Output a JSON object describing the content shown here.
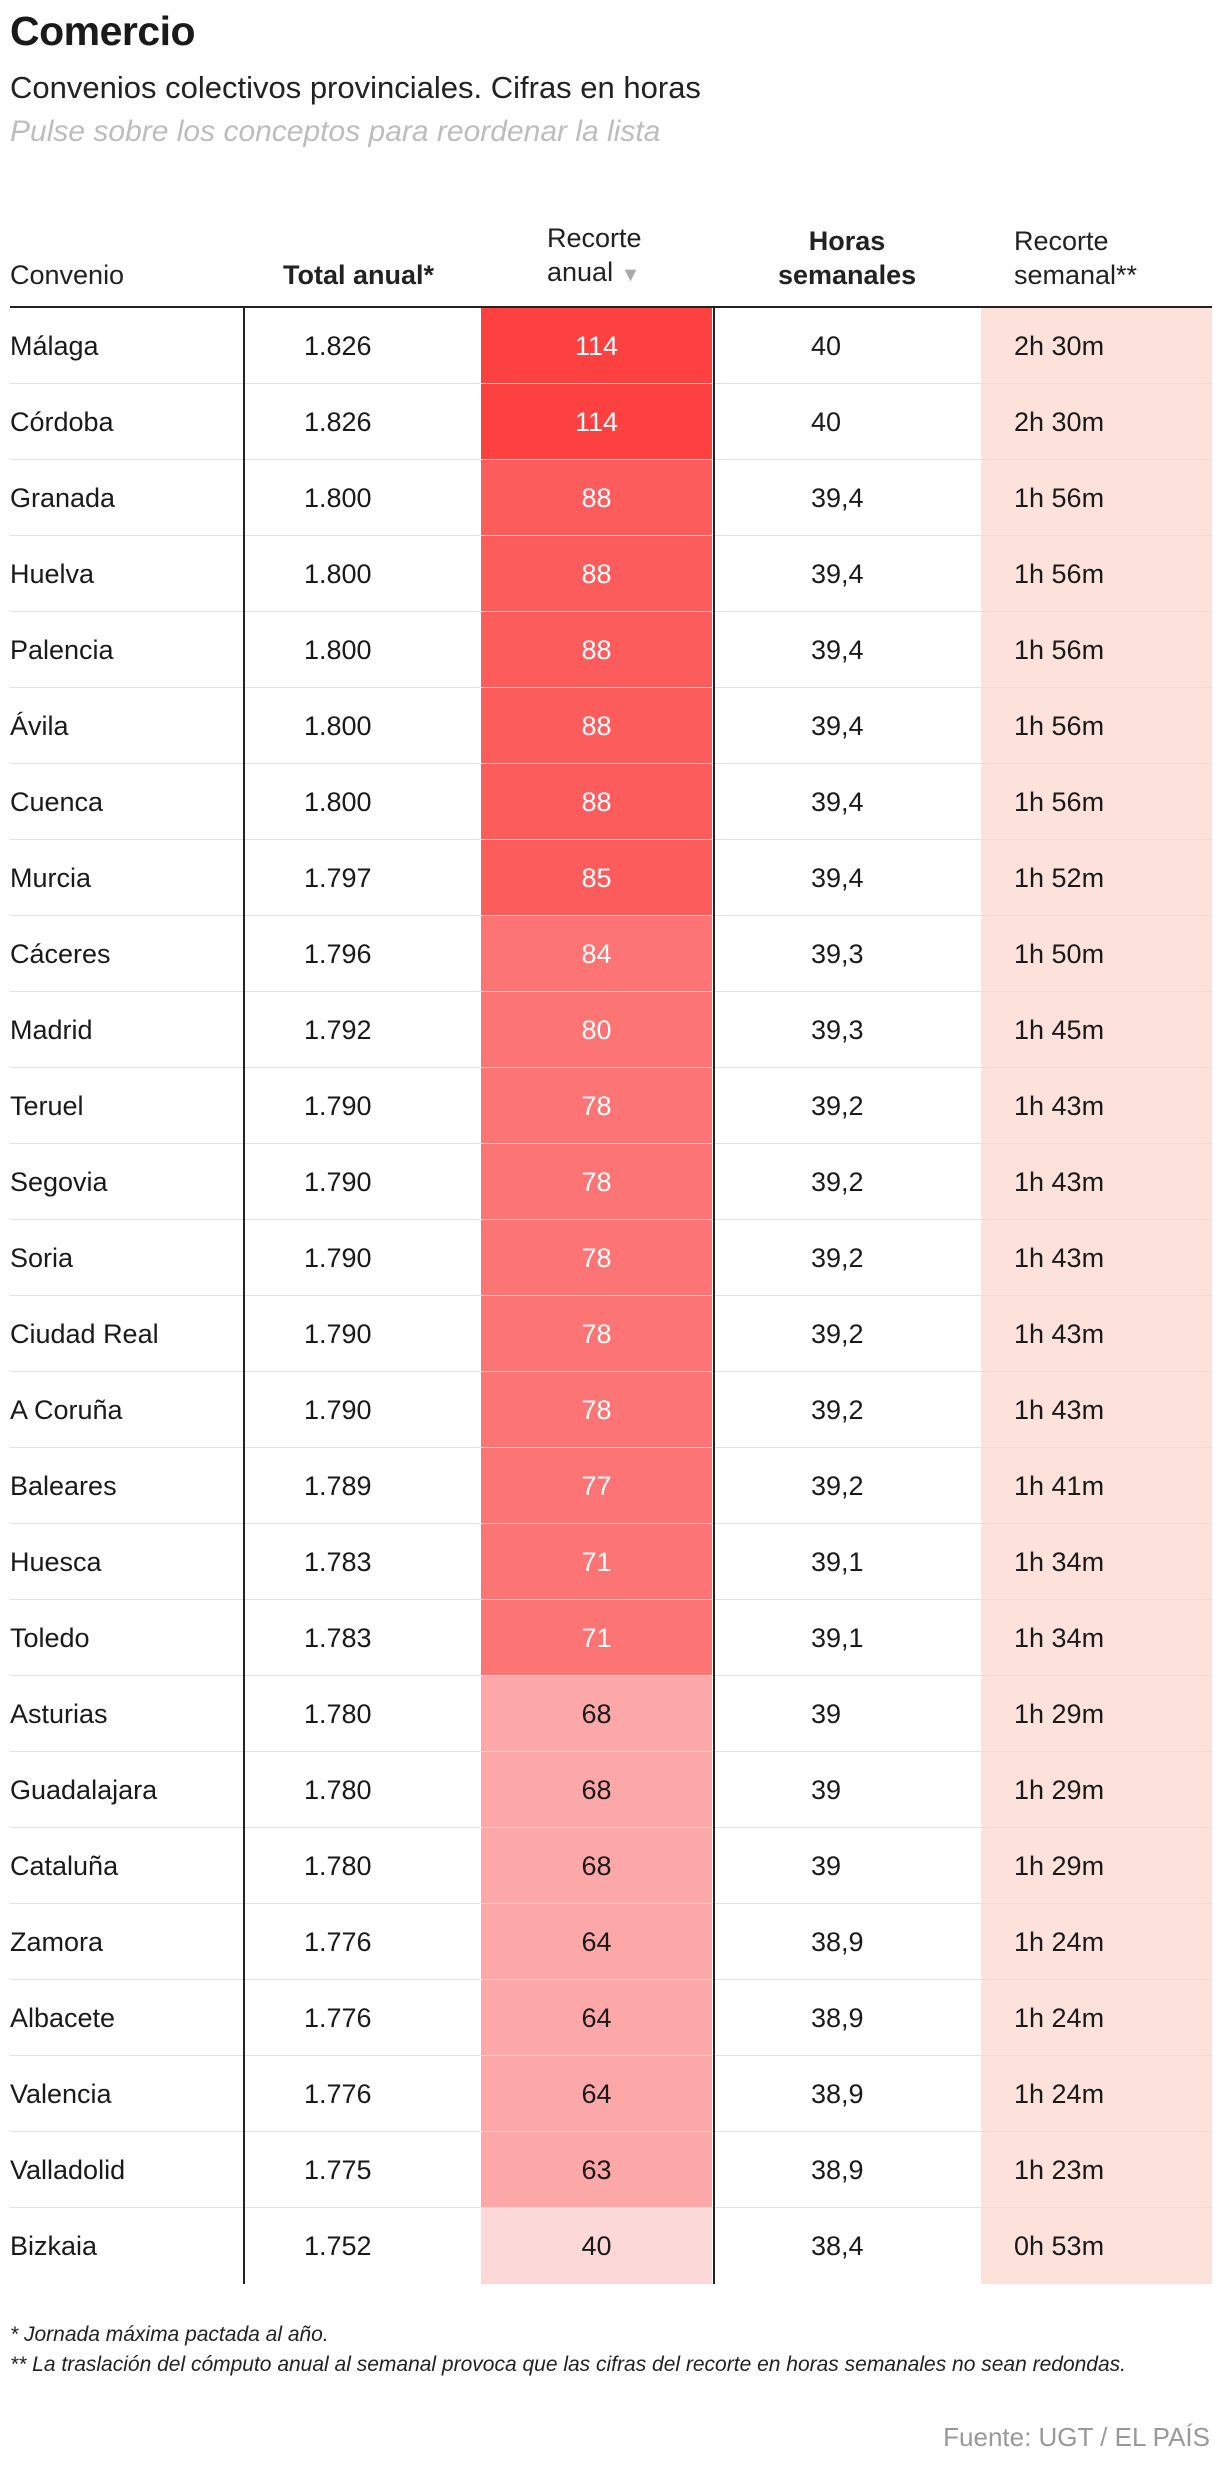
{
  "header": {
    "title": "Comercio",
    "subtitle": "Convenios colectivos provinciales. Cifras en horas",
    "instruction": "Pulse sobre los conceptos para reordenar la lista"
  },
  "columns": {
    "convenio": "Convenio",
    "total": "Total anual*",
    "recorte_line1": "Recorte",
    "recorte_line2": "anual",
    "sort_icon": "▼",
    "horas_line1": "Horas",
    "horas_line2": "semanales",
    "semanal_line1": "Recorte",
    "semanal_line2": "semanal**"
  },
  "colors": {
    "recorte_scale": [
      "#fdd8d8",
      "#fca8a8",
      "#fd7474",
      "#fd5c5c",
      "#fd4040"
    ],
    "semanal_bg": "#fde2dc"
  },
  "chart_data": {
    "type": "table",
    "columns": [
      "Convenio",
      "Total anual*",
      "Recorte anual",
      "Horas semanales",
      "Recorte semanal**"
    ],
    "sorted_by": "Recorte anual",
    "rows": [
      {
        "convenio": "Málaga",
        "total": "1.826",
        "recorte": 114,
        "horas": "40",
        "semanal": "2h 30m"
      },
      {
        "convenio": "Córdoba",
        "total": "1.826",
        "recorte": 114,
        "horas": "40",
        "semanal": "2h 30m"
      },
      {
        "convenio": "Granada",
        "total": "1.800",
        "recorte": 88,
        "horas": "39,4",
        "semanal": "1h 56m"
      },
      {
        "convenio": "Huelva",
        "total": "1.800",
        "recorte": 88,
        "horas": "39,4",
        "semanal": "1h 56m"
      },
      {
        "convenio": "Palencia",
        "total": "1.800",
        "recorte": 88,
        "horas": "39,4",
        "semanal": "1h 56m"
      },
      {
        "convenio": "Ávila",
        "total": "1.800",
        "recorte": 88,
        "horas": "39,4",
        "semanal": "1h 56m"
      },
      {
        "convenio": "Cuenca",
        "total": "1.800",
        "recorte": 88,
        "horas": "39,4",
        "semanal": "1h 56m"
      },
      {
        "convenio": "Murcia",
        "total": "1.797",
        "recorte": 85,
        "horas": "39,4",
        "semanal": "1h 52m"
      },
      {
        "convenio": "Cáceres",
        "total": "1.796",
        "recorte": 84,
        "horas": "39,3",
        "semanal": "1h 50m"
      },
      {
        "convenio": "Madrid",
        "total": "1.792",
        "recorte": 80,
        "horas": "39,3",
        "semanal": "1h 45m"
      },
      {
        "convenio": "Teruel",
        "total": "1.790",
        "recorte": 78,
        "horas": "39,2",
        "semanal": "1h 43m"
      },
      {
        "convenio": "Segovia",
        "total": "1.790",
        "recorte": 78,
        "horas": "39,2",
        "semanal": "1h 43m"
      },
      {
        "convenio": "Soria",
        "total": "1.790",
        "recorte": 78,
        "horas": "39,2",
        "semanal": "1h 43m"
      },
      {
        "convenio": "Ciudad Real",
        "total": "1.790",
        "recorte": 78,
        "horas": "39,2",
        "semanal": "1h 43m"
      },
      {
        "convenio": "A Coruña",
        "total": "1.790",
        "recorte": 78,
        "horas": "39,2",
        "semanal": "1h 43m"
      },
      {
        "convenio": "Baleares",
        "total": "1.789",
        "recorte": 77,
        "horas": "39,2",
        "semanal": "1h 41m"
      },
      {
        "convenio": "Huesca",
        "total": "1.783",
        "recorte": 71,
        "horas": "39,1",
        "semanal": "1h 34m"
      },
      {
        "convenio": "Toledo",
        "total": "1.783",
        "recorte": 71,
        "horas": "39,1",
        "semanal": "1h 34m"
      },
      {
        "convenio": "Asturias",
        "total": "1.780",
        "recorte": 68,
        "horas": "39",
        "semanal": "1h 29m"
      },
      {
        "convenio": "Guadalajara",
        "total": "1.780",
        "recorte": 68,
        "horas": "39",
        "semanal": "1h 29m"
      },
      {
        "convenio": "Cataluña",
        "total": "1.780",
        "recorte": 68,
        "horas": "39",
        "semanal": "1h 29m"
      },
      {
        "convenio": "Zamora",
        "total": "1.776",
        "recorte": 64,
        "horas": "38,9",
        "semanal": "1h 24m"
      },
      {
        "convenio": "Albacete",
        "total": "1.776",
        "recorte": 64,
        "horas": "38,9",
        "semanal": "1h 24m"
      },
      {
        "convenio": "Valencia",
        "total": "1.776",
        "recorte": 64,
        "horas": "38,9",
        "semanal": "1h 24m"
      },
      {
        "convenio": "Valladolid",
        "total": "1.775",
        "recorte": 63,
        "horas": "38,9",
        "semanal": "1h 23m"
      },
      {
        "convenio": "Bizkaia",
        "total": "1.752",
        "recorte": 40,
        "horas": "38,4",
        "semanal": "0h 53m"
      }
    ]
  },
  "footnotes": {
    "note1": "* Jornada máxima pactada al año.",
    "note2": "** La traslación del cómputo anual al semanal provoca que las cifras del recorte en horas semanales no sean redondas."
  },
  "source": "Fuente: UGT / EL PAÍS"
}
